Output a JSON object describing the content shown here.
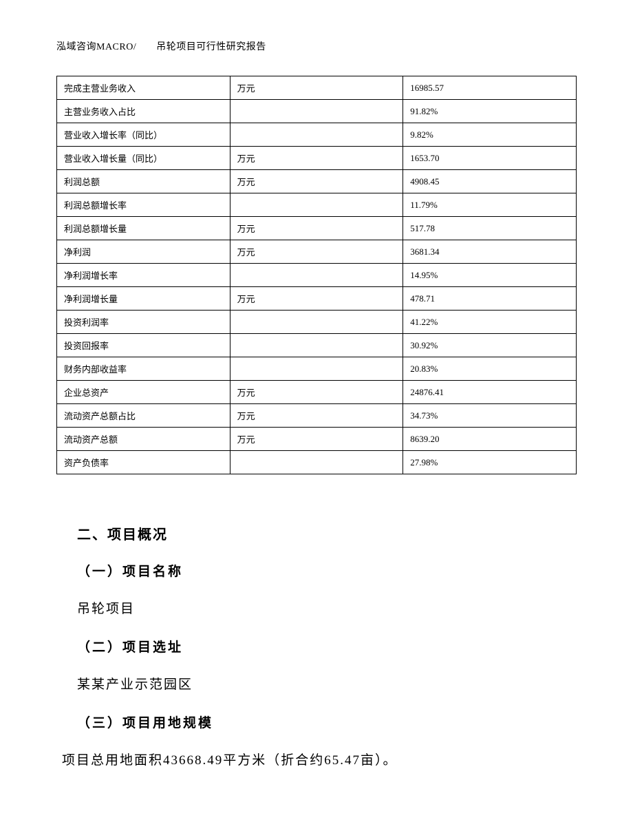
{
  "header": {
    "text": "泓域咨询MACRO/　　吊轮项目可行性研究报告"
  },
  "table": {
    "rows": [
      {
        "label": "完成主营业务收入",
        "unit": "万元",
        "value": "16985.57"
      },
      {
        "label": "主营业务收入占比",
        "unit": "",
        "value": "91.82%"
      },
      {
        "label": "营业收入增长率（同比）",
        "unit": "",
        "value": "9.82%"
      },
      {
        "label": "营业收入增长量（同比）",
        "unit": "万元",
        "value": "1653.70"
      },
      {
        "label": "利润总额",
        "unit": "万元",
        "value": "4908.45"
      },
      {
        "label": "利润总额增长率",
        "unit": "",
        "value": "11.79%"
      },
      {
        "label": "利润总额增长量",
        "unit": "万元",
        "value": "517.78"
      },
      {
        "label": "净利润",
        "unit": "万元",
        "value": "3681.34"
      },
      {
        "label": "净利润增长率",
        "unit": "",
        "value": "14.95%"
      },
      {
        "label": "净利润增长量",
        "unit": "万元",
        "value": "478.71"
      },
      {
        "label": "投资利润率",
        "unit": "",
        "value": "41.22%"
      },
      {
        "label": "投资回报率",
        "unit": "",
        "value": "30.92%"
      },
      {
        "label": "财务内部收益率",
        "unit": "",
        "value": "20.83%"
      },
      {
        "label": "企业总资产",
        "unit": "万元",
        "value": "24876.41"
      },
      {
        "label": "流动资产总额占比",
        "unit": "万元",
        "value": "34.73%"
      },
      {
        "label": "流动资产总额",
        "unit": "万元",
        "value": "8639.20"
      },
      {
        "label": "资产负债率",
        "unit": "",
        "value": "27.98%"
      }
    ]
  },
  "sections": {
    "main_heading": "二、项目概况",
    "sub1_heading": "（一）项目名称",
    "sub1_text": "吊轮项目",
    "sub2_heading": "（二）项目选址",
    "sub2_text": "某某产业示范园区",
    "sub3_heading": "（三）项目用地规模",
    "sub3_text": "项目总用地面积43668.49平方米（折合约65.47亩）。"
  }
}
